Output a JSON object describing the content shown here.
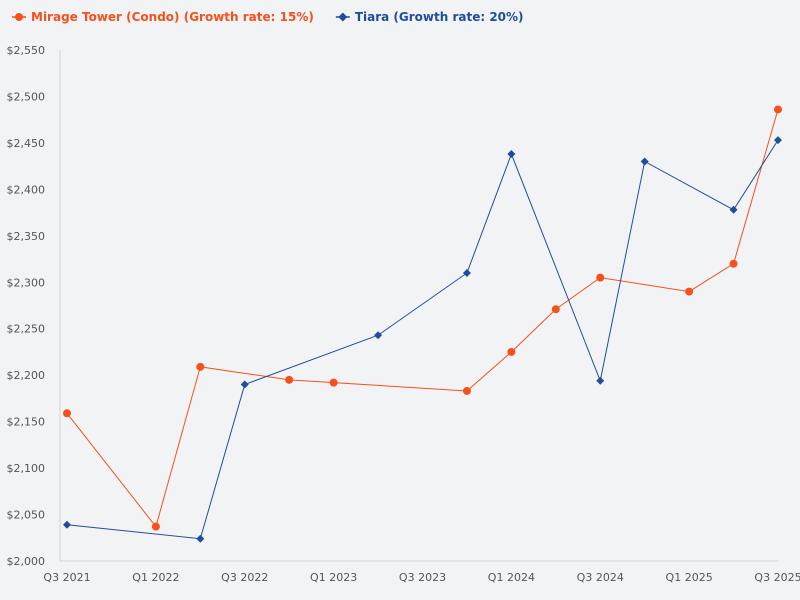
{
  "chart_data": {
    "type": "line",
    "title": "",
    "xlabel": "",
    "ylabel": "",
    "ylim": [
      2000,
      2550
    ],
    "y_ticks": [
      "$2,000",
      "$2,050",
      "$2,100",
      "$2,150",
      "$2,200",
      "$2,250",
      "$2,300",
      "$2,350",
      "$2,400",
      "$2,450",
      "$2,500",
      "$2,550"
    ],
    "y_tick_values": [
      2000,
      2050,
      2100,
      2150,
      2200,
      2250,
      2300,
      2350,
      2400,
      2450,
      2500,
      2550
    ],
    "x_range": [
      0,
      16
    ],
    "x_ticks": [
      "Q3 2021",
      "Q1 2022",
      "Q3 2022",
      "Q1 2023",
      "Q3 2023",
      "Q1 2024",
      "Q3 2024",
      "Q1 2025",
      "Q3 2025"
    ],
    "x_tick_values": [
      0,
      2,
      4,
      6,
      8,
      10,
      12,
      14,
      16
    ],
    "legend_position": "top-left",
    "series": [
      {
        "name": "Mirage Tower (Condo) (Growth rate: 15%)",
        "color": "#f4511e",
        "marker": "circle",
        "x": [
          0,
          2,
          3,
          5,
          6,
          9,
          10,
          11,
          12,
          14,
          15,
          16
        ],
        "values": [
          2159,
          2037,
          2209,
          2195,
          2192,
          2183,
          2225,
          2271,
          2305,
          2290,
          2320,
          2486
        ]
      },
      {
        "name": "Tiara (Growth rate: 20%)",
        "color": "#1f4e9c",
        "marker": "diamond",
        "x": [
          0,
          3,
          4,
          7,
          9,
          10,
          12,
          13,
          15,
          16
        ],
        "values": [
          2039,
          2024,
          2190,
          2243,
          2310,
          2438,
          2194,
          2430,
          2378,
          2453
        ]
      }
    ]
  }
}
